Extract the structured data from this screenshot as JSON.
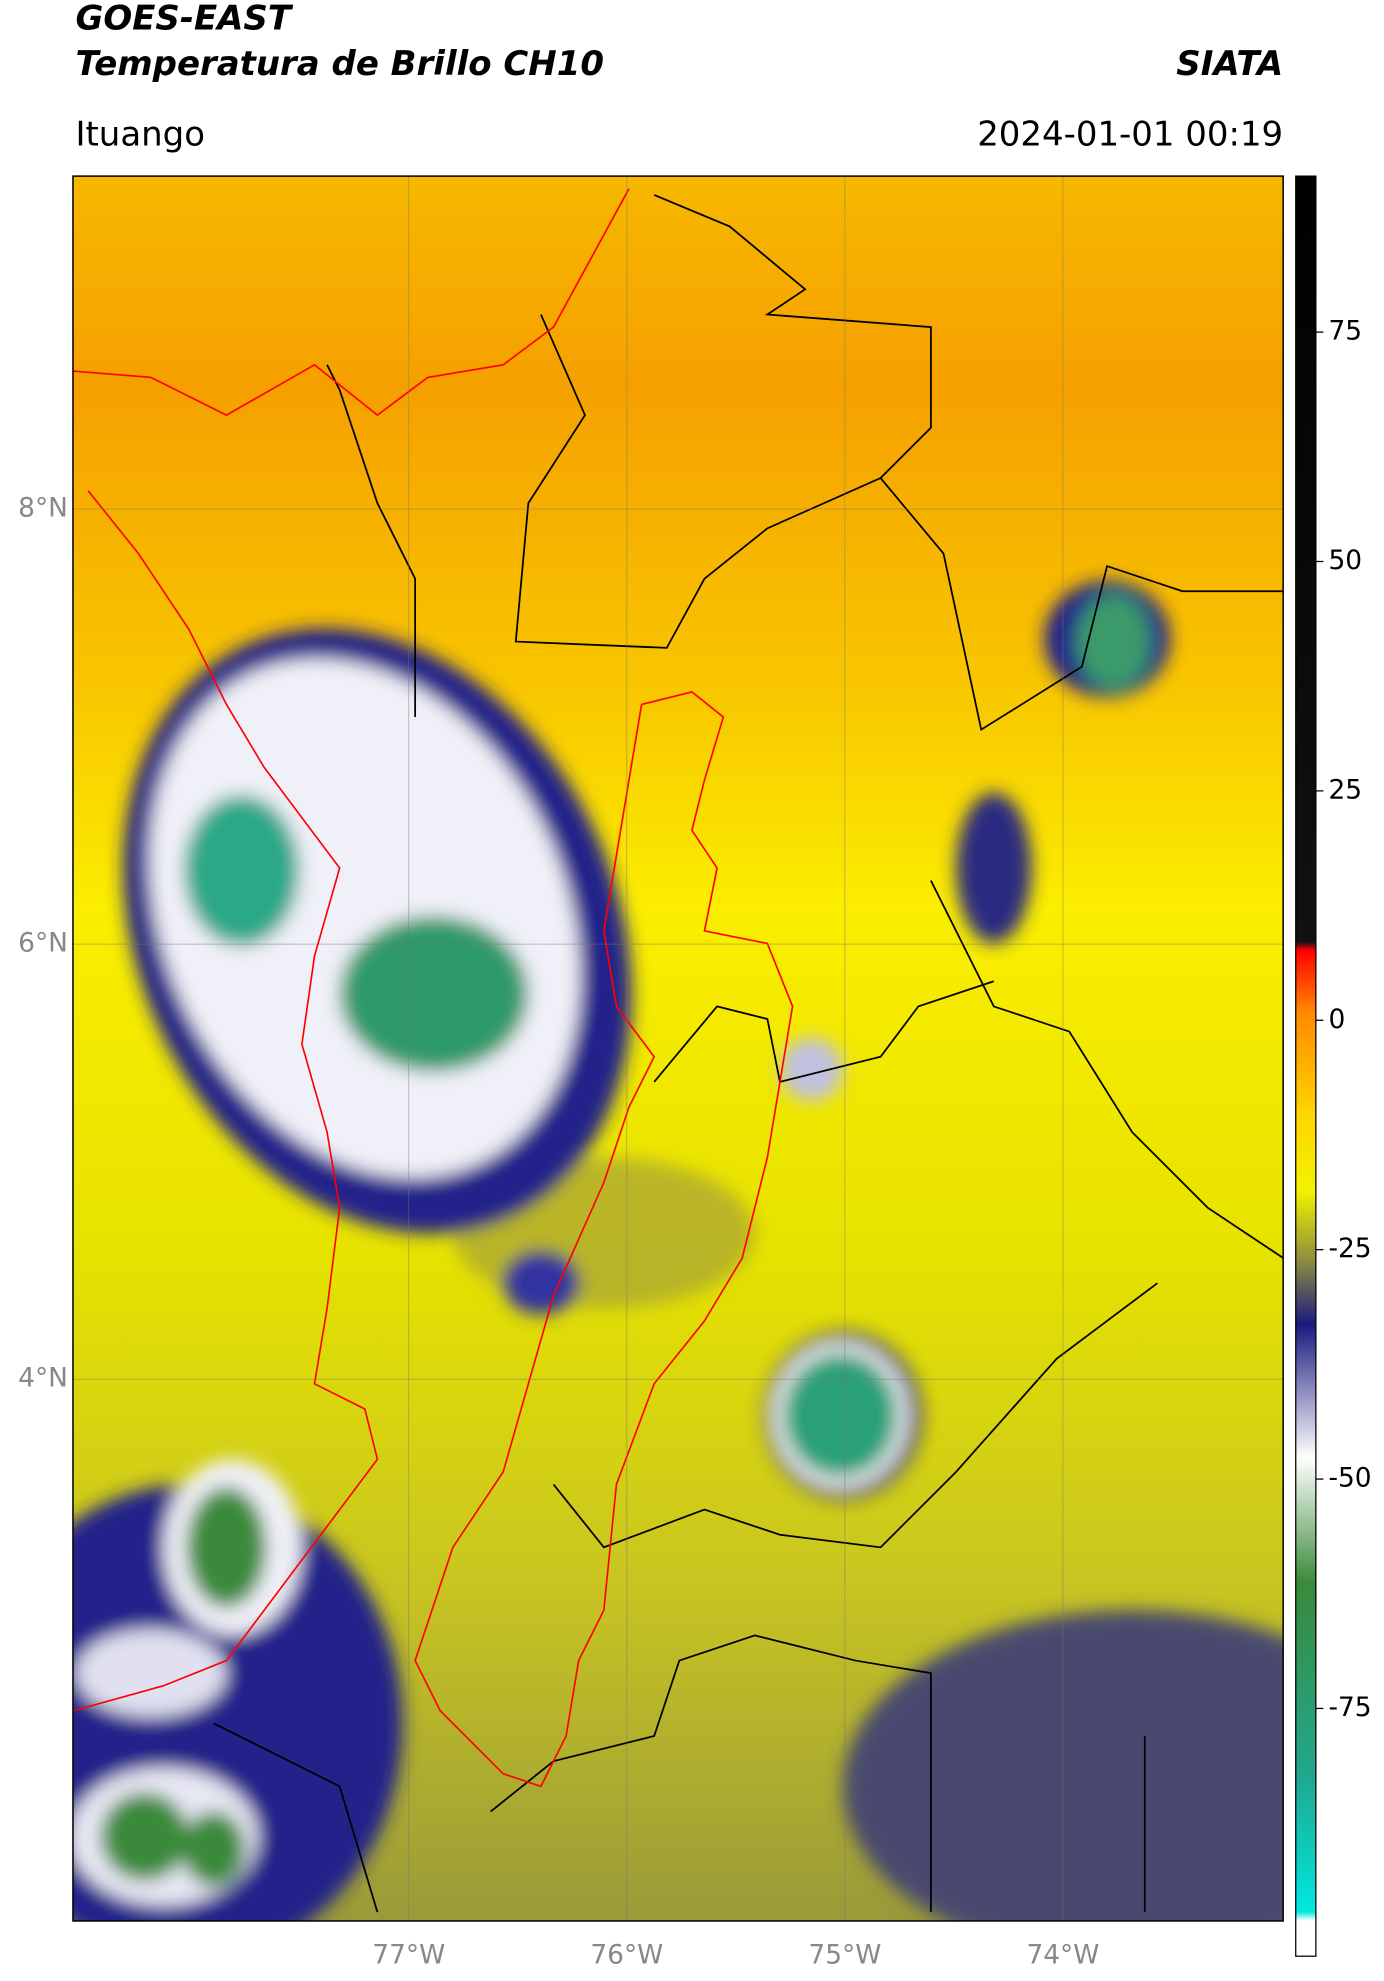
{
  "header": {
    "title": "GOES-EAST",
    "subtitle": "Temperatura de Brillo CH10",
    "source": "SIATA",
    "region": "Ituango",
    "datetime": "2024-01-01 00:19"
  },
  "map": {
    "lonlim": [
      -78.54,
      -72.99
    ],
    "latlim": [
      1.51,
      9.53
    ],
    "lonticks": [
      {
        "value": -77,
        "label": "77°W"
      },
      {
        "value": -76,
        "label": "76°W"
      },
      {
        "value": -75,
        "label": "75°W"
      },
      {
        "value": -74,
        "label": "74°W"
      }
    ],
    "latticks": [
      {
        "value": 8,
        "label": "8°N"
      },
      {
        "value": 6,
        "label": "6°N"
      },
      {
        "value": 4,
        "label": "4°N"
      }
    ]
  },
  "colorbar": {
    "lim": [
      -102,
      92
    ],
    "ticks": [
      75,
      50,
      25,
      0,
      -25,
      -50,
      -75
    ]
  }
}
